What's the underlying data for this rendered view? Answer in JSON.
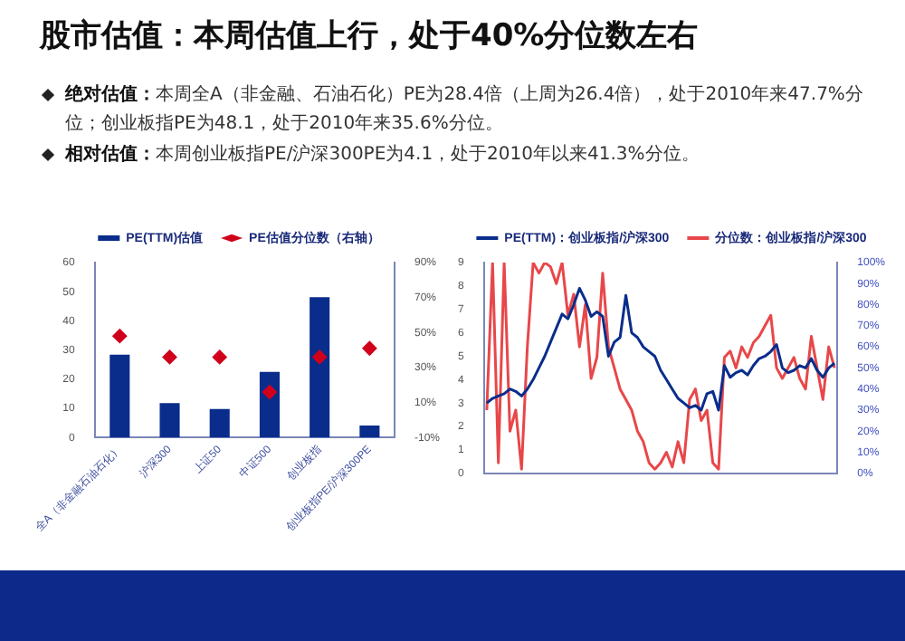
{
  "chart_data": [
    {
      "type": "other",
      "title": "股市估值：本周估值上行，处于40%分位数左右",
      "annotations": [
        "绝对估值：本周全A（非金融、石油石化）PE为28.4倍（上周为26.4倍），处于2010年来47.7%分位；创业板指PE为48.1，处于2010年来35.6%分位。",
        "相对估值：本周创业板指PE/沪深300PE为4.1，处于2010年以来41.3%分位。"
      ]
    },
    {
      "type": "bar",
      "categories": [
        "全A（非金融石油石化）",
        "沪深300",
        "上证50",
        "中证500",
        "创业板指",
        "创业板指PE/沪深300PE"
      ],
      "series": [
        {
          "name": "PE(TTM)估值",
          "color": "#0a2d8c",
          "values": [
            28.4,
            11.8,
            9.8,
            22.5,
            48.1,
            4.1
          ]
        },
        {
          "name": "PE估值分位数（右轴）",
          "type": "scatter",
          "axis": "y2",
          "color": "#d0021b",
          "values": [
            48,
            36,
            36,
            16,
            36,
            41
          ]
        }
      ],
      "ylim": [
        0,
        60
      ],
      "yticks": [
        0,
        10,
        20,
        30,
        40,
        50,
        60
      ],
      "y2lim": [
        -10,
        90
      ],
      "y2ticks": [
        {
          "value": -10,
          "label": "-10%"
        },
        {
          "value": 10,
          "label": "10%"
        },
        {
          "value": 30,
          "label": "30%"
        },
        {
          "value": 50,
          "label": "50%"
        },
        {
          "value": 70,
          "label": "70%"
        },
        {
          "value": 90,
          "label": "90%"
        }
      ],
      "legend": "top",
      "grid": false,
      "marker": "diamond"
    },
    {
      "type": "line",
      "categories": [
        null,
        null,
        null,
        null,
        null,
        null,
        null,
        null,
        null,
        null,
        null,
        null,
        null,
        null,
        null,
        null,
        null,
        null,
        null,
        null,
        null,
        null,
        null,
        null,
        null,
        null,
        null,
        null,
        null,
        null,
        null,
        null,
        null,
        null,
        null,
        null,
        null,
        null,
        null,
        null,
        null,
        null,
        null,
        null,
        null,
        null,
        null,
        null,
        null,
        null,
        null,
        null,
        null,
        null,
        null,
        null,
        null,
        null,
        null,
        null,
        null
      ],
      "series": [
        {
          "name": "PE(TTM)：创业板指/沪深300",
          "color": "#0a2d8c",
          "values": [
            3.0,
            3.2,
            3.3,
            3.4,
            3.6,
            3.5,
            3.3,
            3.6,
            4.0,
            4.5,
            5.0,
            5.6,
            6.2,
            6.8,
            6.6,
            7.2,
            7.9,
            7.4,
            6.7,
            6.9,
            6.7,
            5.0,
            5.6,
            5.8,
            7.6,
            6.0,
            5.8,
            5.4,
            5.2,
            5.0,
            4.4,
            4.0,
            3.6,
            3.2,
            3.0,
            2.8,
            2.9,
            2.7,
            3.4,
            3.5,
            2.7,
            4.6,
            4.1,
            4.3,
            4.4,
            4.2,
            4.6,
            4.9,
            5.0,
            5.2,
            5.5,
            4.5,
            4.3,
            4.4,
            4.6,
            4.5,
            4.9,
            4.4,
            4.1,
            4.5,
            4.7
          ]
        },
        {
          "name": "分位数：创业板指/沪深300",
          "color": "#e8474a",
          "axis": "y2",
          "values": [
            30,
            100,
            5,
            100,
            20,
            30,
            2,
            60,
            100,
            95,
            100,
            98,
            90,
            100,
            75,
            85,
            60,
            80,
            45,
            55,
            95,
            60,
            50,
            40,
            35,
            30,
            20,
            15,
            5,
            2,
            5,
            10,
            3,
            15,
            5,
            35,
            40,
            25,
            30,
            5,
            2,
            55,
            58,
            50,
            60,
            55,
            62,
            65,
            70,
            75,
            50,
            45,
            50,
            55,
            45,
            40,
            65,
            50,
            35,
            60,
            50
          ]
        }
      ],
      "ylim": [
        0,
        9
      ],
      "yticks": [
        0,
        1,
        2,
        3,
        4,
        5,
        6,
        7,
        8,
        9
      ],
      "y2lim": [
        0,
        100
      ],
      "y2ticks": [
        {
          "value": 0,
          "label": "0%"
        },
        {
          "value": 10,
          "label": "10%"
        },
        {
          "value": 20,
          "label": "20%"
        },
        {
          "value": 30,
          "label": "30%"
        },
        {
          "value": 40,
          "label": "40%"
        },
        {
          "value": 50,
          "label": "50%"
        },
        {
          "value": 60,
          "label": "60%"
        },
        {
          "value": 70,
          "label": "70%"
        },
        {
          "value": 80,
          "label": "80%"
        },
        {
          "value": 90,
          "label": "90%"
        },
        {
          "value": 100,
          "label": "100%"
        }
      ],
      "legend": "top",
      "grid": false,
      "marker": "none",
      "line_style": "solid"
    }
  ]
}
